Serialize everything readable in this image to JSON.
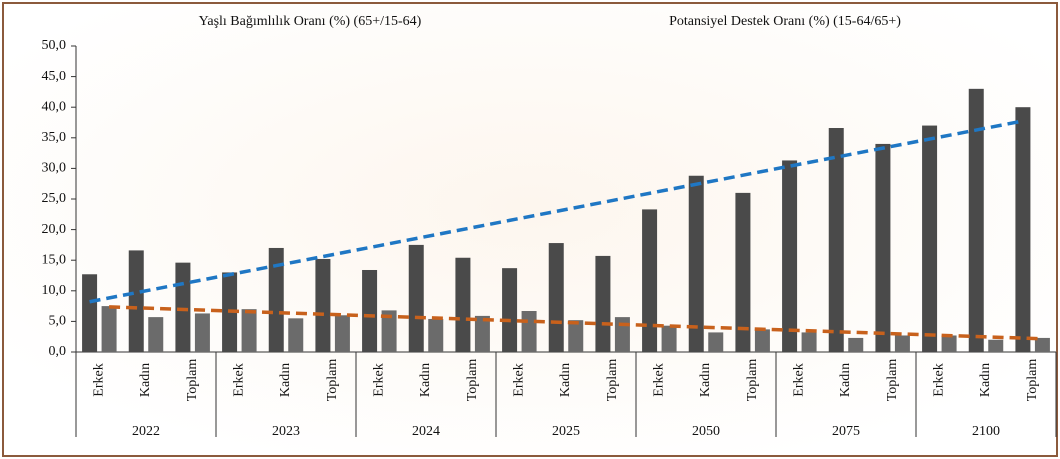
{
  "chart_data": {
    "type": "bar",
    "groups": [
      "2022",
      "2023",
      "2024",
      "2025",
      "2050",
      "2075",
      "2100"
    ],
    "categories": [
      "Erkek",
      "Kadın",
      "Toplam",
      "Erkek",
      "Kadın",
      "Toplam",
      "Erkek",
      "Kadın",
      "Toplam",
      "Erkek",
      "Kadın",
      "Toplam",
      "Erkek",
      "Kadın",
      "Toplam",
      "Erkek",
      "Kadın",
      "Toplam",
      "Erkek",
      "Kadın",
      "Toplam"
    ],
    "series": [
      {
        "name": "Yaşlı Bağımlılık Oranı (%) (65+/15-64)",
        "color": "#4a4a4a",
        "trendline_color": "#1f77c4",
        "values": [
          12.7,
          16.6,
          14.6,
          13.0,
          17.0,
          15.2,
          13.4,
          17.5,
          15.4,
          13.7,
          17.8,
          15.7,
          23.3,
          28.8,
          26.0,
          31.3,
          36.6,
          34.0,
          37.0,
          43.0,
          40.0
        ]
      },
      {
        "name": "Potansiyel Destek Oranı (%) (15-64/65+)",
        "color": "#6b6b6b",
        "trendline_color": "#c8611c",
        "values": [
          7.5,
          5.7,
          6.3,
          7.0,
          5.5,
          6.0,
          6.8,
          5.4,
          5.9,
          6.7,
          5.2,
          5.7,
          4.3,
          3.2,
          3.7,
          3.2,
          2.3,
          2.7,
          2.7,
          2.0,
          2.3
        ]
      }
    ],
    "trendline": true,
    "ylim": [
      0,
      50
    ],
    "yticks": [
      {
        "value": 0,
        "label": "0,0"
      },
      {
        "value": 5,
        "label": "5,0"
      },
      {
        "value": 10,
        "label": "10,0"
      },
      {
        "value": 15,
        "label": "15,0"
      },
      {
        "value": 20,
        "label": "20,0"
      },
      {
        "value": 25,
        "label": "25,0"
      },
      {
        "value": 30,
        "label": "30,0"
      },
      {
        "value": 35,
        "label": "35,0"
      },
      {
        "value": 40,
        "label": "40,0"
      },
      {
        "value": 45,
        "label": "45,0"
      },
      {
        "value": 50,
        "label": "50,0"
      }
    ]
  }
}
